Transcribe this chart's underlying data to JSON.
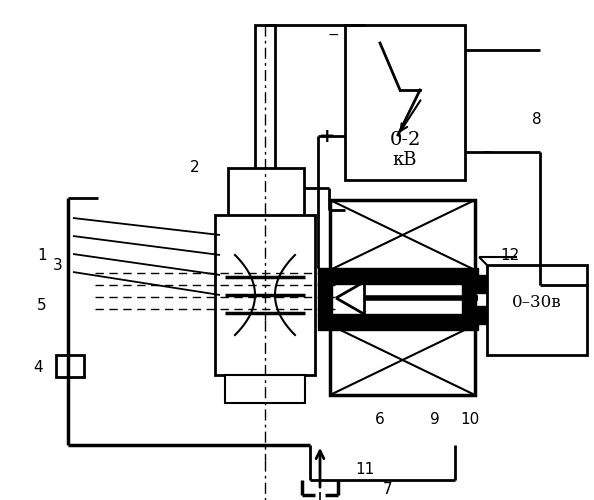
{
  "bg_color": "#ffffff",
  "figsize": [
    5.94,
    5.0
  ],
  "dpi": 100
}
